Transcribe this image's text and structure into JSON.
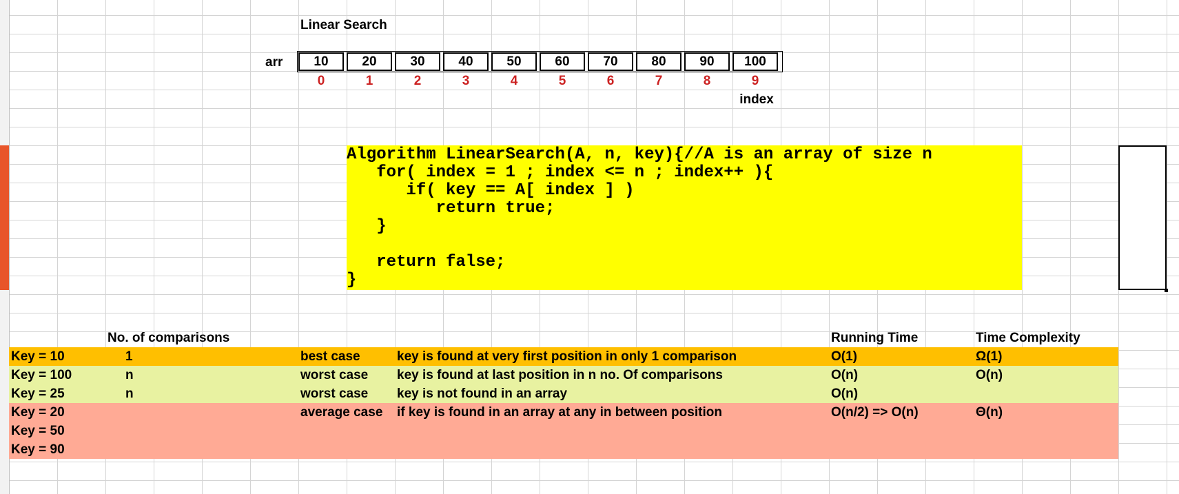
{
  "title": "Linear Search",
  "array": {
    "label": "arr",
    "values": [
      "10",
      "20",
      "30",
      "40",
      "50",
      "60",
      "70",
      "80",
      "90",
      "100"
    ],
    "indices": [
      "0",
      "1",
      "2",
      "3",
      "4",
      "5",
      "6",
      "7",
      "8",
      "9"
    ],
    "index_label": "index"
  },
  "code": [
    "Algorithm LinearSearch(A, n, key){//A is an array of size n",
    "   for( index = 1 ; index <= n ; index++ ){",
    "      if( key == A[ index ] )",
    "         return true;",
    "   }",
    "",
    "   return false;",
    "}"
  ],
  "table": {
    "headers": {
      "comparisons": "No. of comparisons",
      "running_time": "Running Time",
      "complexity": "Time Complexity"
    },
    "rows": [
      {
        "key": "Key = 10",
        "comparisons": "1",
        "case": "best case",
        "description": "key is found at very first position in only 1 comparison",
        "running_time": "O(1)",
        "complexity": "Ω(1)"
      },
      {
        "key": "Key = 100",
        "comparisons": "n",
        "case": "worst case",
        "description": "key is found at last position in n no. Of comparisons",
        "running_time": "O(n)",
        "complexity": "O(n)"
      },
      {
        "key": "Key = 25",
        "comparisons": "n",
        "case": "worst case",
        "description": "key is not found in an array",
        "running_time": "O(n)",
        "complexity": ""
      },
      {
        "key": "Key = 20",
        "comparisons": "",
        "case": "average case",
        "description": "if key is found in an array at any in between position",
        "running_time": "O(n/2) => O(n)",
        "complexity": "Θ(n)"
      },
      {
        "key": "Key = 50",
        "comparisons": "",
        "case": "",
        "description": "",
        "running_time": "",
        "complexity": ""
      },
      {
        "key": "Key = 90",
        "comparisons": "",
        "case": "",
        "description": "",
        "running_time": "",
        "complexity": ""
      }
    ]
  },
  "colors": {
    "best": "#ffbf00",
    "worst": "#e8f2a1",
    "average": "#ffaa95",
    "code_bg": "#ffff00",
    "index_text": "#cc2222"
  }
}
